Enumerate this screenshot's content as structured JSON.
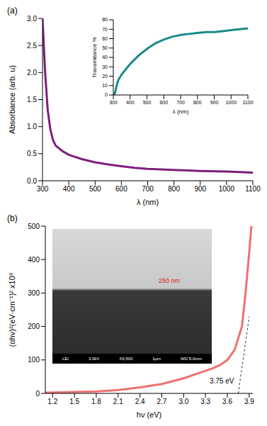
{
  "chart_data": [
    {
      "type": "line",
      "panel_label": "(a)",
      "x_label": "λ (nm)",
      "y_label": "Absorbance (arb. u)",
      "x": [
        300,
        310,
        320,
        330,
        340,
        350,
        375,
        400,
        450,
        500,
        550,
        600,
        650,
        700,
        800,
        900,
        1000,
        1100
      ],
      "values": [
        3.0,
        2.0,
        1.3,
        0.95,
        0.75,
        0.65,
        0.55,
        0.48,
        0.4,
        0.34,
        0.3,
        0.27,
        0.24,
        0.22,
        0.2,
        0.18,
        0.17,
        0.15
      ],
      "color": "#7d1f7d",
      "xlim": [
        300,
        1100
      ],
      "xticks": [
        300,
        400,
        500,
        600,
        700,
        800,
        900,
        1000,
        1100
      ],
      "ylim": [
        0,
        3
      ],
      "yticks": [
        {
          "value": 0,
          "label": "0.0"
        },
        {
          "value": 0.5,
          "label": "0.5"
        },
        {
          "value": 1,
          "label": "1.0"
        },
        {
          "value": 1.5,
          "label": "1.5"
        },
        {
          "value": 2,
          "label": "2.0"
        },
        {
          "value": 2.5,
          "label": "2.5"
        },
        {
          "value": 3,
          "label": "3.0"
        }
      ],
      "grid": false
    },
    {
      "type": "line",
      "x_label": "λ (nm)",
      "y_label": "Transmitance %",
      "x": [
        300,
        310,
        320,
        330,
        350,
        400,
        450,
        500,
        550,
        600,
        650,
        700,
        750,
        800,
        850,
        900,
        950,
        1000,
        1050,
        1100
      ],
      "values": [
        0,
        2,
        10,
        16,
        22,
        33,
        42,
        49,
        55,
        59,
        62,
        64,
        65,
        66,
        67,
        67,
        68,
        69,
        70,
        71
      ],
      "color": "#1a8a8a",
      "xlim": [
        300,
        1100
      ],
      "xticks": [
        300,
        400,
        500,
        600,
        700,
        800,
        900,
        1000,
        1100
      ],
      "ylim": [
        0,
        80
      ],
      "yticks": [
        0,
        10,
        20,
        30,
        40,
        50,
        60,
        70,
        80
      ],
      "grid": false
    },
    {
      "type": "line",
      "panel_label": "(b)",
      "x_label": "hν (eV)",
      "y_label": "(αhν)²(eV·cm⁻¹)² x10⁸",
      "x": [
        1.1,
        1.5,
        1.8,
        2.1,
        2.4,
        2.7,
        3.0,
        3.2,
        3.4,
        3.5,
        3.6,
        3.7,
        3.8,
        3.85,
        3.9,
        3.93
      ],
      "values": [
        2,
        4,
        6,
        10,
        18,
        28,
        45,
        60,
        75,
        85,
        100,
        130,
        200,
        300,
        420,
        500
      ],
      "color": "#f07070",
      "xlim": [
        1.1,
        3.95
      ],
      "xticks": [
        1.2,
        1.5,
        1.8,
        2.1,
        2.4,
        2.7,
        {
          "value": 3,
          "label": "3.0"
        },
        3.3,
        3.6,
        3.9
      ],
      "ylim": [
        0,
        500
      ],
      "yticks": [
        0,
        100,
        200,
        300,
        400,
        500
      ],
      "grid": false,
      "tangent_line": {
        "x": [
          3.75,
          3.9
        ],
        "y": [
          0,
          230
        ],
        "line_style": "dashed"
      },
      "annotations": [
        {
          "text": "3.75 eV",
          "x": 3.75,
          "y": 0
        }
      ],
      "inset_image": {
        "scale_label": "250 nm",
        "info_bar": [
          "LEI",
          "3.0kV",
          "X9,500",
          "1μm",
          "WD 8.0mm"
        ]
      }
    }
  ]
}
